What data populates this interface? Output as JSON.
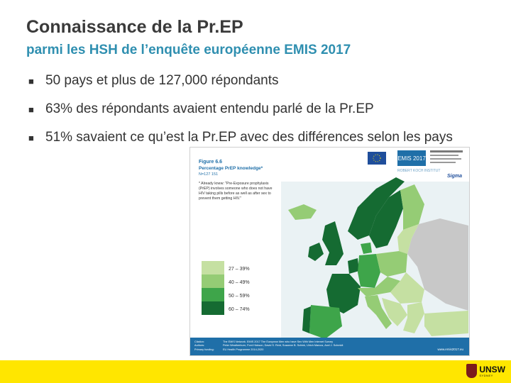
{
  "slide": {
    "title": "Connaissance de la Pr.EP",
    "subtitle": "parmi les HSH de l’enquête européenne EMIS 2017",
    "bullets": [
      "50 pays et plus de 127,000 répondants",
      "63% des répondants avaient entendu parlé de la Pr.EP",
      "51% savaient ce qu’est la Pr.EP avec des différences selon les pays"
    ]
  },
  "figure": {
    "heading": "Figure 6.6",
    "subheading": "Percentage PrEP knowledge*",
    "sample": "N=127 151",
    "note": "* Already knew: \"Pre-Exposure prophylaxis (PrEP) involves someone who does not have HIV taking pills before as well as after sex to prevent them getting HIV.\"",
    "legend": [
      {
        "label": "27 – 39%",
        "color": "#c5e0a2"
      },
      {
        "label": "40 – 49%",
        "color": "#95cc75"
      },
      {
        "label": "50 – 59%",
        "color": "#3ea54a"
      },
      {
        "label": "60 – 74%",
        "color": "#156b32"
      }
    ],
    "logos": {
      "emis": "EMIS 2017",
      "institute": "ROBERT KOCH INSTITUT",
      "sigma": "Sigma"
    },
    "citation": {
      "citation_label": "Citation:",
      "citation_text": "The EMIS Network. EMIS 2017 The European Men who have Sex With Men Internet Survey",
      "authors_label": "Authors:",
      "authors_text": "Peter Weatherburn, Ford Hickson, David S. Reid, Susanne B. Schink, Ulrich Marcus, Axel J. Schmidt",
      "funding_label": "Primary funding:",
      "funding_text": "EU Health Programme 2014-2020",
      "url": "www.emis2017.eu"
    }
  },
  "footer": {
    "logo_text": "UNSW",
    "logo_sub": "SYDNEY",
    "bar_color": "#ffe600"
  }
}
